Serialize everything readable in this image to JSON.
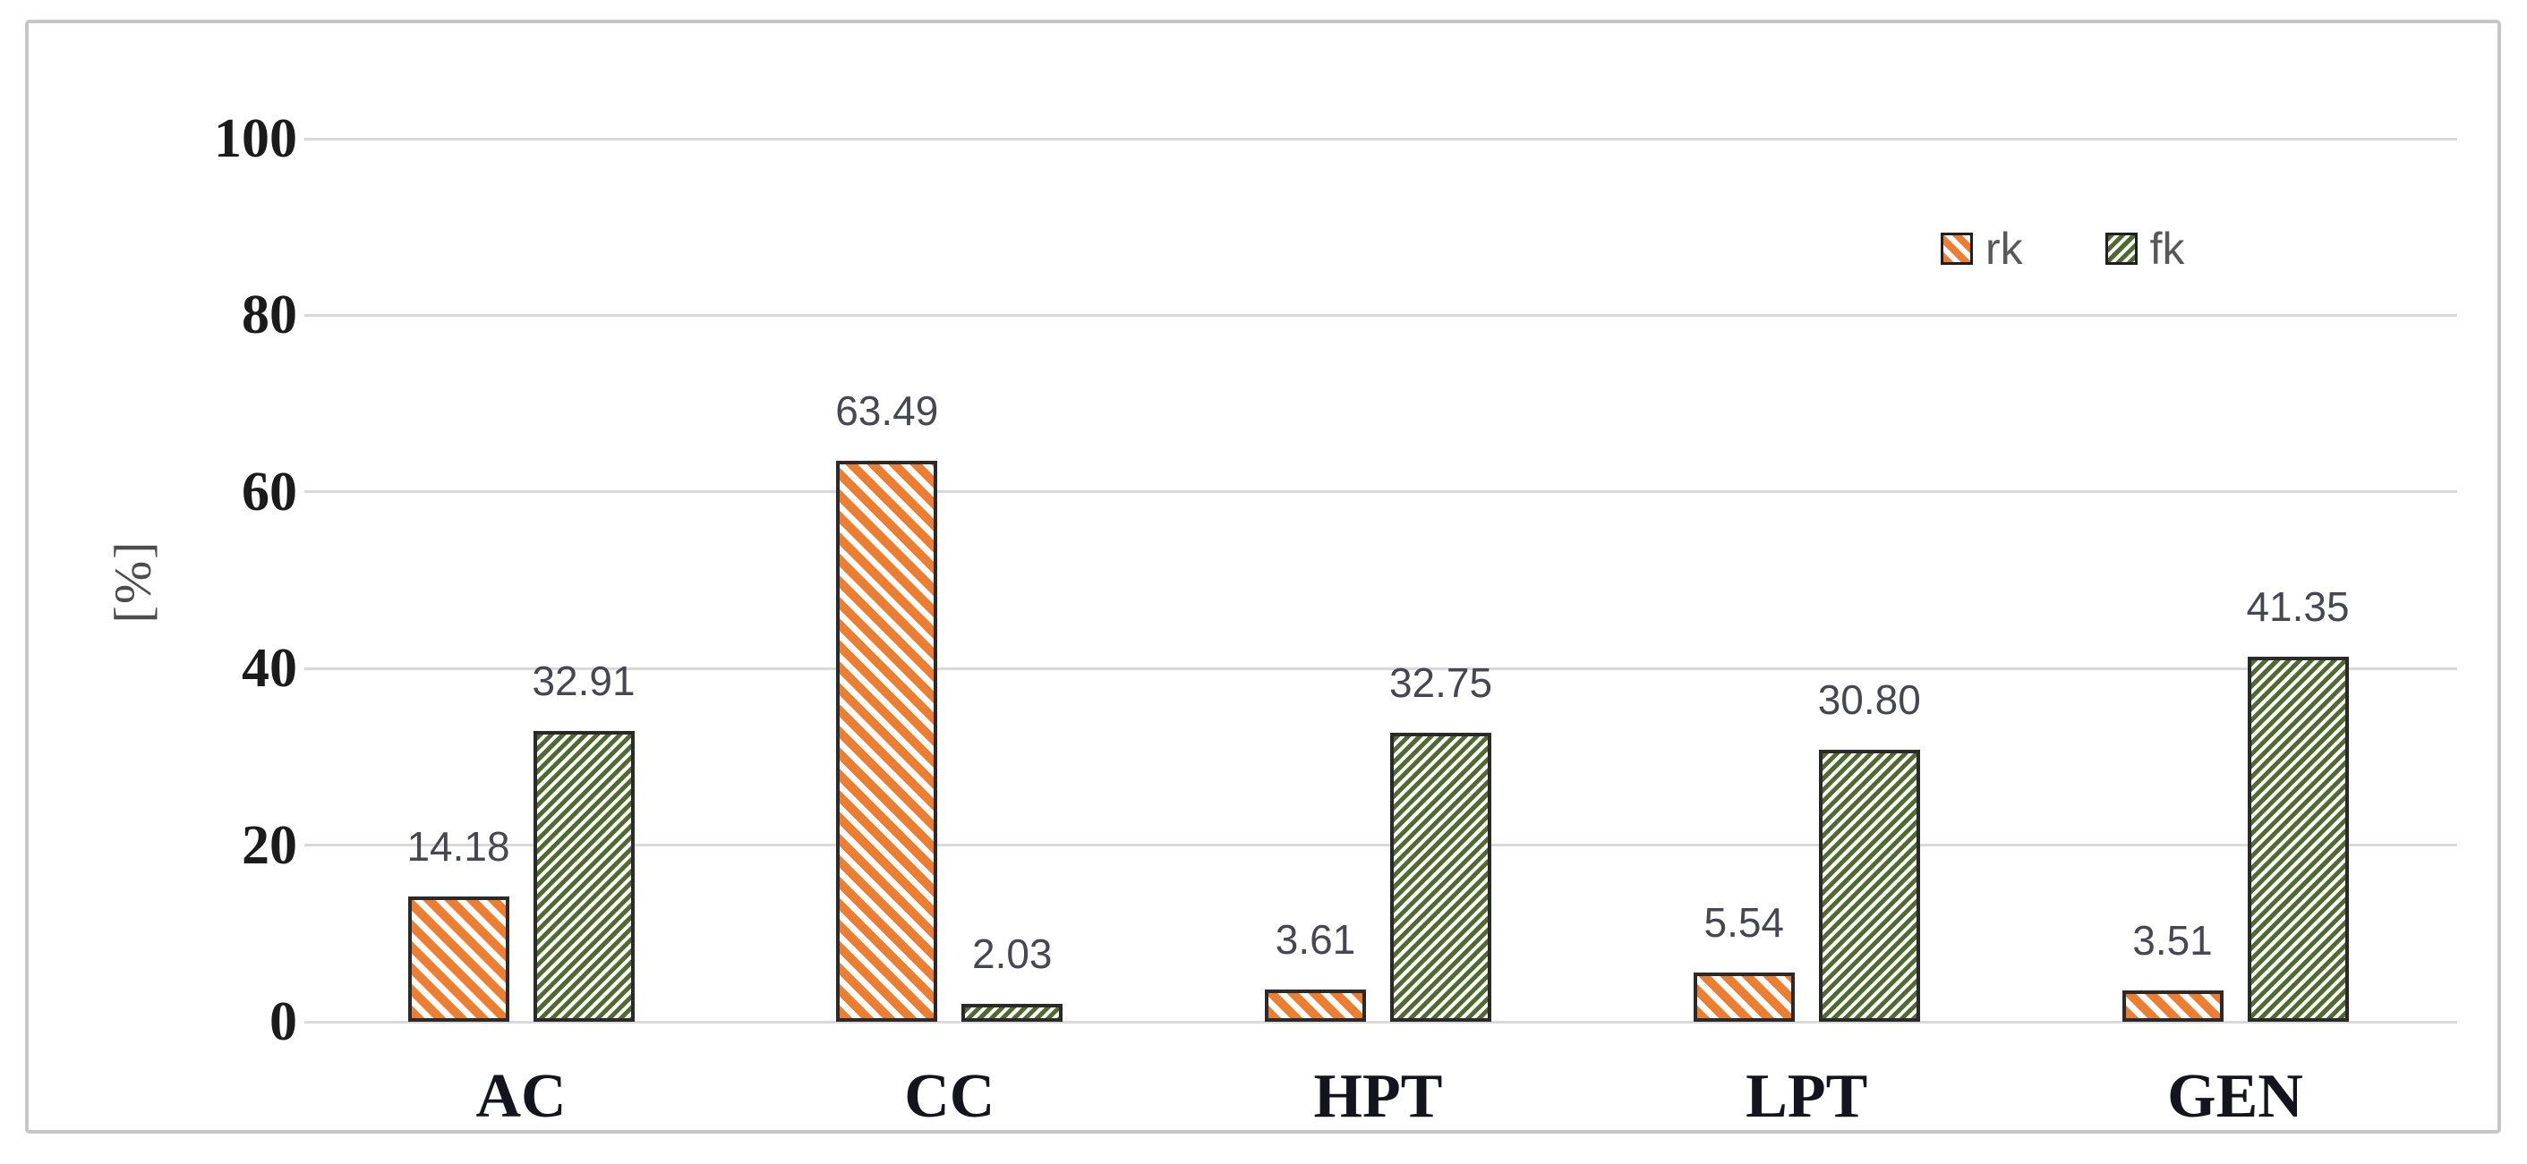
{
  "figure": {
    "background": "#ffffff",
    "border_color": "#c6c6c6"
  },
  "chart_data": {
    "type": "bar",
    "categories": [
      "AC",
      "CC",
      "HPT",
      "LPT",
      "GEN"
    ],
    "series": [
      {
        "name": "rk",
        "values": [
          14.18,
          63.49,
          3.61,
          5.54,
          3.51
        ],
        "labels": [
          "14.18",
          "63.49",
          "3.61",
          "5.54",
          "3.51"
        ],
        "color": "#ED7D31",
        "hatch": "diagonal-down"
      },
      {
        "name": "fk",
        "values": [
          32.91,
          2.03,
          32.75,
          30.8,
          41.35
        ],
        "labels": [
          "32.91",
          "2.03",
          "32.75",
          "30.80",
          "41.35"
        ],
        "color": "#4F6B2F",
        "hatch": "diagonal-up"
      }
    ],
    "title": "",
    "xlabel": "",
    "ylabel": "[%]",
    "yticks": [
      0,
      20,
      40,
      60,
      80,
      100
    ],
    "ylim": [
      0,
      100
    ],
    "grid": true,
    "legend": [
      "rk",
      "fk"
    ],
    "legend_position": "top-right",
    "bar_border_color": "#2a2a2a",
    "gridline_color": "#d9d9d9"
  }
}
